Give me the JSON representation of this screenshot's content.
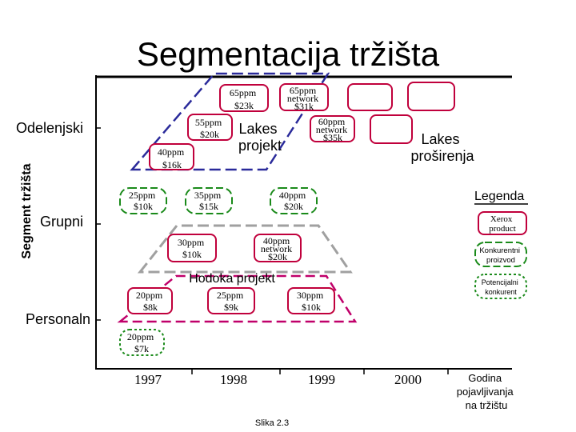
{
  "title": "Segmentacija tržišta",
  "y_axis_label": "Segment tržišta",
  "x_axis_label": "Godina pojavljivanja na tržištu",
  "caption": "Slika 2.3",
  "colors": {
    "xerox": "#c0003c",
    "competitor": "#1a8a1a",
    "potential": "#1a8a1a",
    "groupline": "#2a2a9a",
    "hodoka": "#a0a0a0",
    "personal_dash": "#c0006a",
    "axis": "#000000"
  },
  "segments": {
    "odelenjski": "Odelenjski",
    "grupni": "Grupni",
    "personalni": "Personaln"
  },
  "years": [
    "1997",
    "1998",
    "1999",
    "2000"
  ],
  "groups": {
    "lakes_projekt": [
      "Lakes",
      "projekt"
    ],
    "lakes_prosirenja": [
      "Lakes",
      "proširenja"
    ],
    "hodoka_projekt": "Hodoka projekt"
  },
  "legend": {
    "title": "Legenda",
    "items": [
      {
        "kind": "xerox",
        "lines": [
          "Xerox",
          "product"
        ]
      },
      {
        "kind": "competitor",
        "lines": [
          "Konkurentni",
          "proizvod"
        ]
      },
      {
        "kind": "potential",
        "lines": [
          "Potencijalni",
          "konkurent"
        ]
      }
    ]
  },
  "products": [
    {
      "id": "p65-23",
      "kind": "xerox",
      "lines": [
        "65ppm",
        "$23k"
      ]
    },
    {
      "id": "p65n-31",
      "kind": "xerox",
      "lines": [
        "65ppm",
        "network",
        "$31k"
      ]
    },
    {
      "id": "p-blank-1",
      "kind": "xerox",
      "lines": []
    },
    {
      "id": "p-blank-2",
      "kind": "xerox",
      "lines": []
    },
    {
      "id": "p55-20",
      "kind": "xerox",
      "lines": [
        "55ppm",
        "$20k"
      ]
    },
    {
      "id": "p60n-35",
      "kind": "xerox",
      "lines": [
        "60ppm",
        "network",
        "$35k"
      ]
    },
    {
      "id": "p-blank-3",
      "kind": "xerox",
      "lines": []
    },
    {
      "id": "p40-16",
      "kind": "xerox",
      "lines": [
        "40ppm",
        "$16k"
      ]
    },
    {
      "id": "p25-10",
      "kind": "competitor",
      "lines": [
        "25ppm",
        "$10k"
      ]
    },
    {
      "id": "p35-15",
      "kind": "competitor",
      "lines": [
        "35ppm",
        "$15k"
      ]
    },
    {
      "id": "p40-20",
      "kind": "competitor",
      "lines": [
        "40ppm",
        "$20k"
      ]
    },
    {
      "id": "p30-10",
      "kind": "xerox",
      "lines": [
        "30ppm",
        "$10k"
      ]
    },
    {
      "id": "p40n-20",
      "kind": "xerox",
      "lines": [
        "40ppm",
        "network",
        "$20k"
      ]
    },
    {
      "id": "p20-8",
      "kind": "xerox",
      "lines": [
        "20ppm",
        "$8k"
      ]
    },
    {
      "id": "p25-9",
      "kind": "xerox",
      "lines": [
        "25ppm",
        "$9k"
      ]
    },
    {
      "id": "p30-10b",
      "kind": "xerox",
      "lines": [
        "30ppm",
        "$10k"
      ]
    },
    {
      "id": "p20-7",
      "kind": "potential",
      "lines": [
        "20ppm",
        "$7k"
      ]
    }
  ]
}
